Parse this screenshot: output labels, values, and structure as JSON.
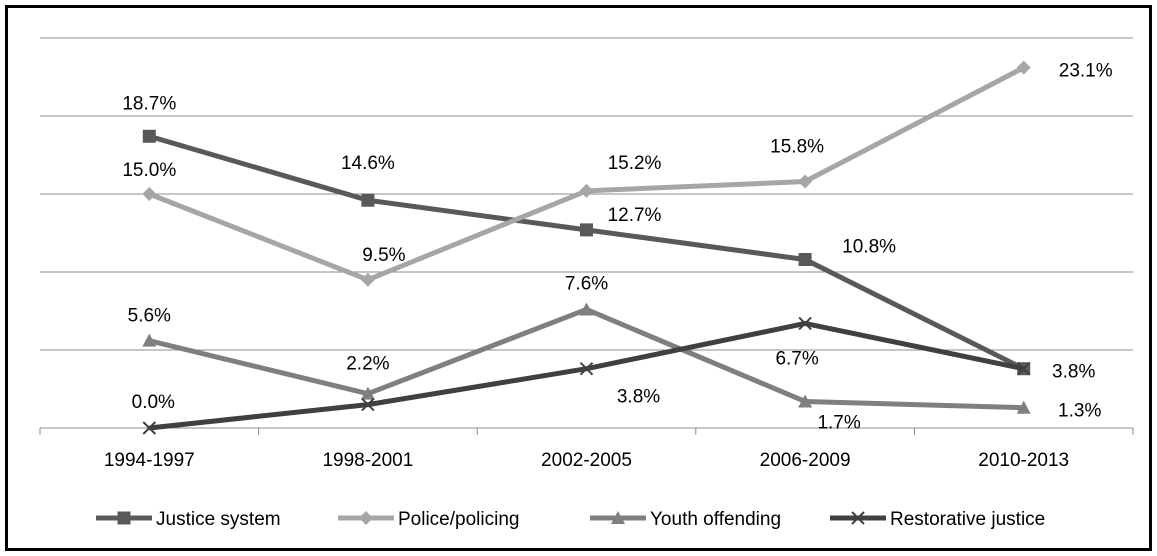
{
  "chart_data": {
    "type": "line",
    "title": "",
    "xlabel": "",
    "ylabel": "",
    "categories": [
      "1994-1997",
      "1998-2001",
      "2002-2005",
      "2006-2009",
      "2010-2013"
    ],
    "ylim": [
      0,
      25
    ],
    "grid": true,
    "legend_position": "bottom",
    "series": [
      {
        "name": "Justice system",
        "values": [
          18.7,
          14.6,
          12.7,
          10.8,
          3.8
        ],
        "labels": [
          "18.7%",
          "14.6%",
          "12.7%",
          "10.8%",
          "3.8%"
        ],
        "color": "#595959",
        "marker": "square"
      },
      {
        "name": "Police/policing",
        "values": [
          15.0,
          9.5,
          15.2,
          15.8,
          23.1
        ],
        "labels": [
          "15.0%",
          "9.5%",
          "15.2%",
          "15.8%",
          "23.1%"
        ],
        "color": "#a6a6a6",
        "marker": "diamond"
      },
      {
        "name": "Youth offending",
        "values": [
          5.6,
          2.2,
          7.6,
          1.7,
          1.3
        ],
        "labels": [
          "5.6%",
          "2.2%",
          "7.6%",
          "1.7%",
          "1.3%"
        ],
        "color": "#7f7f7f",
        "marker": "triangle"
      },
      {
        "name": "Restorative justice",
        "values": [
          0.0,
          1.5,
          3.8,
          6.7,
          3.8
        ],
        "labels": [
          "0.0%",
          "",
          "3.8%",
          "6.7%",
          ""
        ],
        "color": "#404040",
        "marker": "x"
      }
    ]
  }
}
